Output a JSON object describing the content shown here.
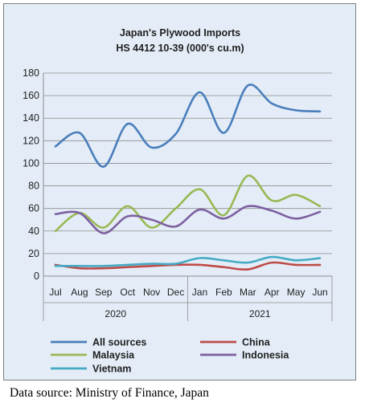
{
  "chart_data": {
    "type": "line",
    "title": "Japan's Plywood Imports",
    "subtitle": "HS 4412 10-39  (000's cu.m)",
    "xlabel": "",
    "ylabel": "",
    "categories": [
      "Jul",
      "Aug",
      "Sep",
      "Oct",
      "Nov",
      "Dec",
      "Jan",
      "Feb",
      "Mar",
      "Apr",
      "May",
      "Jun"
    ],
    "year_groups": [
      {
        "label": "2020",
        "months": 6
      },
      {
        "label": "2021",
        "months": 6
      }
    ],
    "yticks": [
      "0",
      "20",
      "40",
      "60",
      "80",
      "100",
      "120",
      "140",
      "160",
      "180"
    ],
    "ylim": [
      0,
      180
    ],
    "grid": true,
    "legend_position": "bottom",
    "series": [
      {
        "name": "All sources",
        "color": "#4a7ebb",
        "values": [
          115,
          127,
          97,
          135,
          114,
          126,
          163,
          127,
          169,
          153,
          147,
          146
        ]
      },
      {
        "name": "China",
        "color": "#be4b48",
        "values": [
          10,
          7,
          7,
          8,
          9,
          10,
          10,
          8,
          6,
          12,
          10,
          10
        ]
      },
      {
        "name": "Malaysia",
        "color": "#98b954",
        "values": [
          40,
          56,
          43,
          62,
          43,
          60,
          77,
          54,
          89,
          67,
          72,
          62
        ]
      },
      {
        "name": "Indonesia",
        "color": "#7d60a0",
        "values": [
          55,
          56,
          38,
          53,
          50,
          44,
          59,
          51,
          62,
          58,
          51,
          57
        ]
      },
      {
        "name": "Vietnam",
        "color": "#46aac5",
        "values": [
          9,
          9,
          9,
          10,
          11,
          11,
          16,
          14,
          12,
          17,
          14,
          16
        ]
      }
    ]
  },
  "source_note": "Data source: Ministry of Finance, Japan"
}
